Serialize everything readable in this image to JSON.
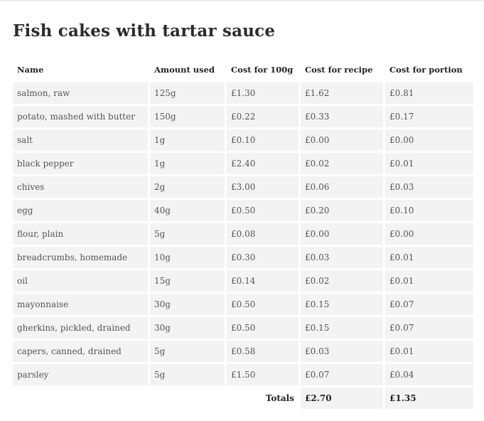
{
  "recipe": {
    "title": "Fish cakes with tartar sauce",
    "columns": [
      "Name",
      "Amount used",
      "Cost for 100g",
      "Cost for recipe",
      "Cost for portion"
    ],
    "rows": [
      [
        "salmon, raw",
        "125g",
        "£1.30",
        "£1.62",
        "£0.81"
      ],
      [
        "potato, mashed with butter",
        "150g",
        "£0.22",
        "£0.33",
        "£0.17"
      ],
      [
        "salt",
        "1g",
        "£0.10",
        "£0.00",
        "£0.00"
      ],
      [
        "black pepper",
        "1g",
        "£2.40",
        "£0.02",
        "£0.01"
      ],
      [
        "chives",
        "2g",
        "£3.00",
        "£0.06",
        "£0.03"
      ],
      [
        "egg",
        "40g",
        "£0.50",
        "£0.20",
        "£0.10"
      ],
      [
        "flour, plain",
        "5g",
        "£0.08",
        "£0.00",
        "£0.00"
      ],
      [
        "breadcrumbs, homemade",
        "10g",
        "£0.30",
        "£0.03",
        "£0.01"
      ],
      [
        "oil",
        "15g",
        "£0.14",
        "£0.02",
        "£0.01"
      ],
      [
        "mayonnaise",
        "30g",
        "£0.50",
        "£0.15",
        "£0.07"
      ],
      [
        "gherkins, pickled, drained",
        "30g",
        "£0.50",
        "£0.15",
        "£0.07"
      ],
      [
        "capers, canned, drained",
        "5g",
        "£0.58",
        "£0.03",
        "£0.01"
      ],
      [
        "parsley",
        "5g",
        "£1.50",
        "£0.07",
        "£0.04"
      ]
    ],
    "totals": {
      "label": "Totals",
      "recipe": "£2.70",
      "portion": "£1.35"
    }
  }
}
